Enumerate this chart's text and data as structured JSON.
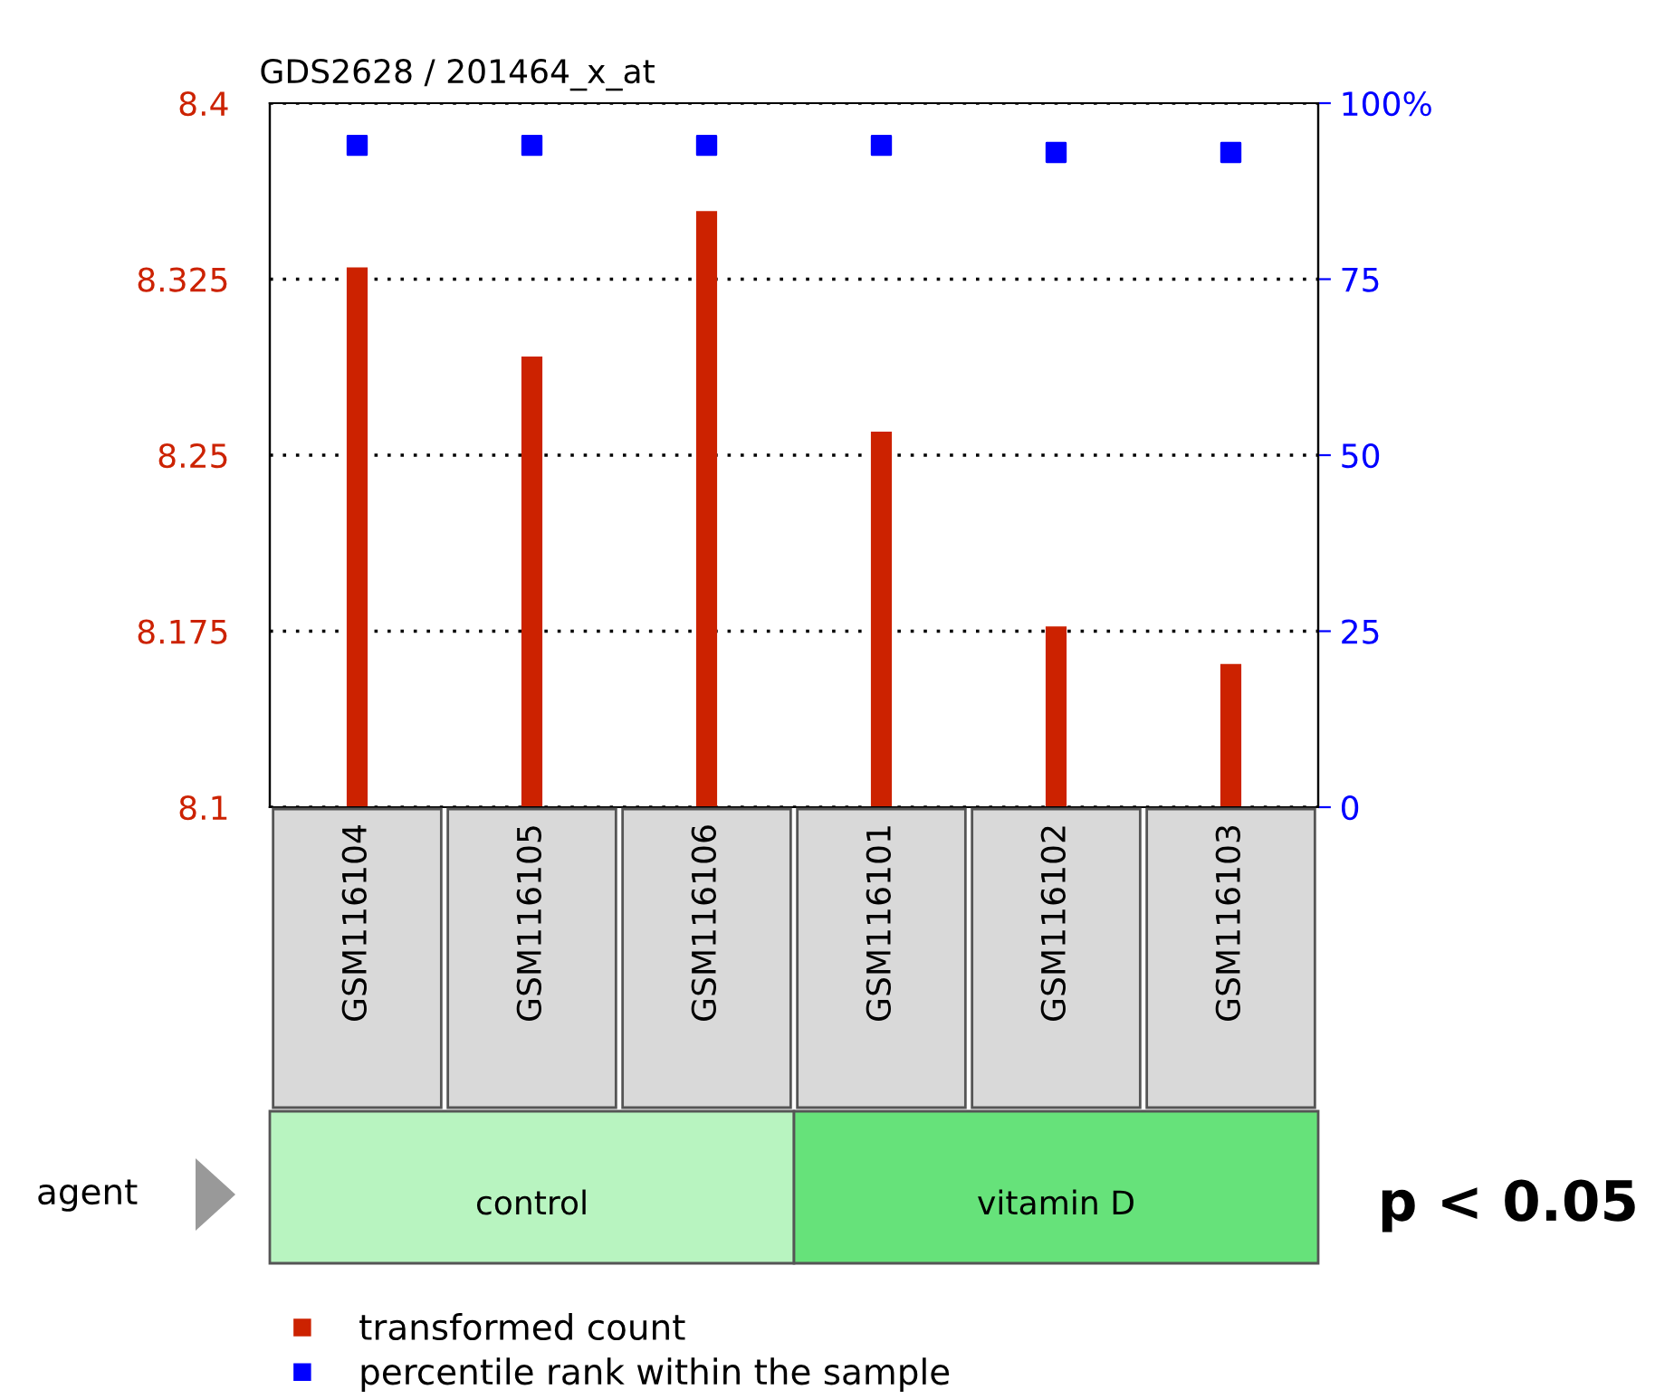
{
  "chart_data": {
    "type": "bar",
    "title": "GDS2628 / 201464_x_at",
    "categories": [
      "GSM116104",
      "GSM116105",
      "GSM116106",
      "GSM116101",
      "GSM116102",
      "GSM116103"
    ],
    "series": [
      {
        "name": "transformed count",
        "color": "#cc2200",
        "values": [
          8.33,
          8.292,
          8.354,
          8.26,
          8.177,
          8.161
        ]
      },
      {
        "name": "percentile rank within the sample",
        "type": "scatter",
        "axis": "y2",
        "marker": "square",
        "color": "#0000ff",
        "values": [
          94,
          94,
          94,
          94,
          93,
          93
        ]
      }
    ],
    "ylim": [
      8.1,
      8.4
    ],
    "yticks": [
      8.1,
      8.175,
      8.25,
      8.325,
      8.4
    ],
    "y2lim": [
      0,
      100
    ],
    "y2ticks": [
      0,
      25,
      50,
      75,
      {
        "value": 100,
        "label": "100%"
      }
    ],
    "grid": "y",
    "legend": "bottom",
    "annotations": [
      "agent",
      "control",
      "vitamin D",
      "p < 0.05"
    ]
  }
}
